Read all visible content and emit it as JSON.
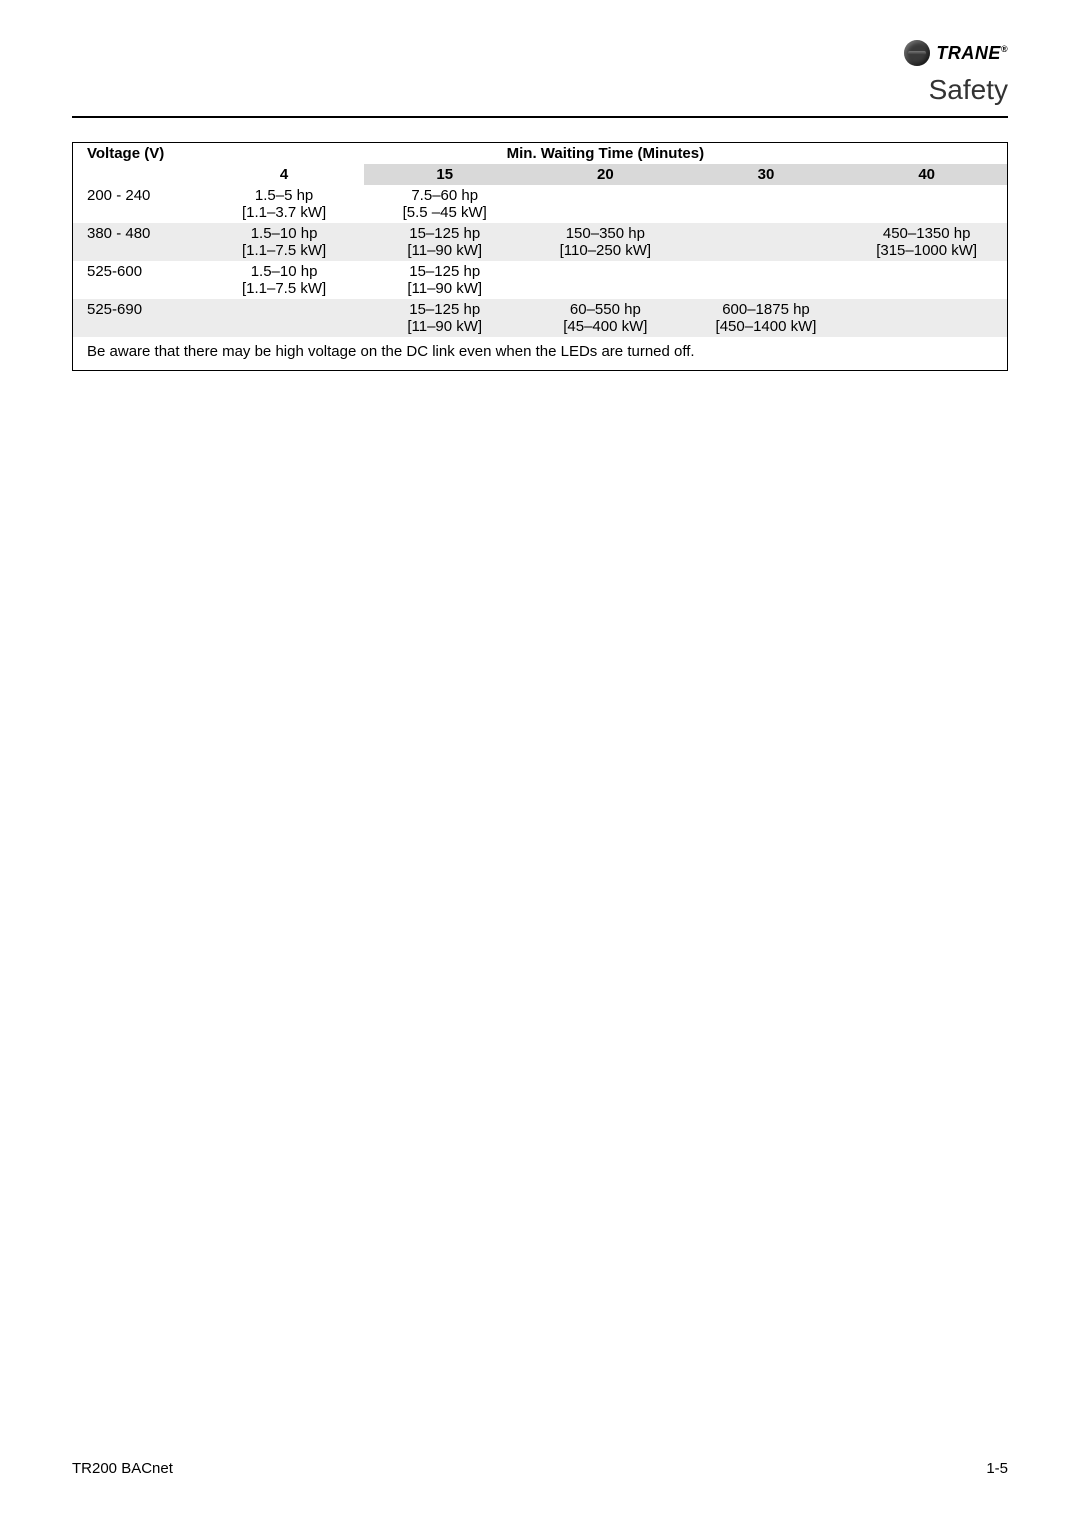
{
  "brand": {
    "name": "TRANE",
    "registered": "®"
  },
  "section_title": "Safety",
  "table": {
    "header_voltage": "Voltage (V)",
    "header_waiting": "Min. Waiting Time (Minutes)",
    "time_columns": [
      "4",
      "15",
      "20",
      "30",
      "40"
    ],
    "rows": [
      {
        "voltage": "200 - 240",
        "alt": false,
        "cells": [
          {
            "top": "1.5–5 hp",
            "bottom": "[1.1–3.7 kW]"
          },
          {
            "top": "7.5–60 hp",
            "bottom": "[5.5 –45 kW]"
          },
          {
            "top": "",
            "bottom": ""
          },
          {
            "top": "",
            "bottom": ""
          },
          {
            "top": "",
            "bottom": ""
          }
        ]
      },
      {
        "voltage": "380 - 480",
        "alt": true,
        "cells": [
          {
            "top": "1.5–10 hp",
            "bottom": "[1.1–7.5 kW]"
          },
          {
            "top": "15–125 hp",
            "bottom": "[11–90 kW]"
          },
          {
            "top": "150–350 hp",
            "bottom": "[110–250 kW]"
          },
          {
            "top": "",
            "bottom": ""
          },
          {
            "top": "450–1350 hp",
            "bottom": "[315–1000 kW]"
          }
        ]
      },
      {
        "voltage": "525-600",
        "alt": false,
        "cells": [
          {
            "top": "1.5–10 hp",
            "bottom": "[1.1–7.5 kW]"
          },
          {
            "top": "15–125 hp",
            "bottom": "[11–90 kW]"
          },
          {
            "top": "",
            "bottom": ""
          },
          {
            "top": "",
            "bottom": ""
          },
          {
            "top": "",
            "bottom": ""
          }
        ]
      },
      {
        "voltage": "525-690",
        "alt": true,
        "cells": [
          {
            "top": "",
            "bottom": ""
          },
          {
            "top": "15–125 hp",
            "bottom": "[11–90 kW]"
          },
          {
            "top": "60–550 hp",
            "bottom": "[45–400 kW]"
          },
          {
            "top": "600–1875 hp",
            "bottom": "[450–1400 kW]"
          },
          {
            "top": "",
            "bottom": ""
          }
        ]
      }
    ],
    "note": "Be aware that there may be high voltage on the DC link even when the LEDs are turned off."
  },
  "footer": {
    "left": "TR200 BACnet",
    "right": "1-5"
  },
  "colors": {
    "header_row_bg": "#d9d9d9",
    "alt_row_bg": "#ececec",
    "text": "#000000",
    "rule": "#000000",
    "page_bg": "#ffffff"
  }
}
